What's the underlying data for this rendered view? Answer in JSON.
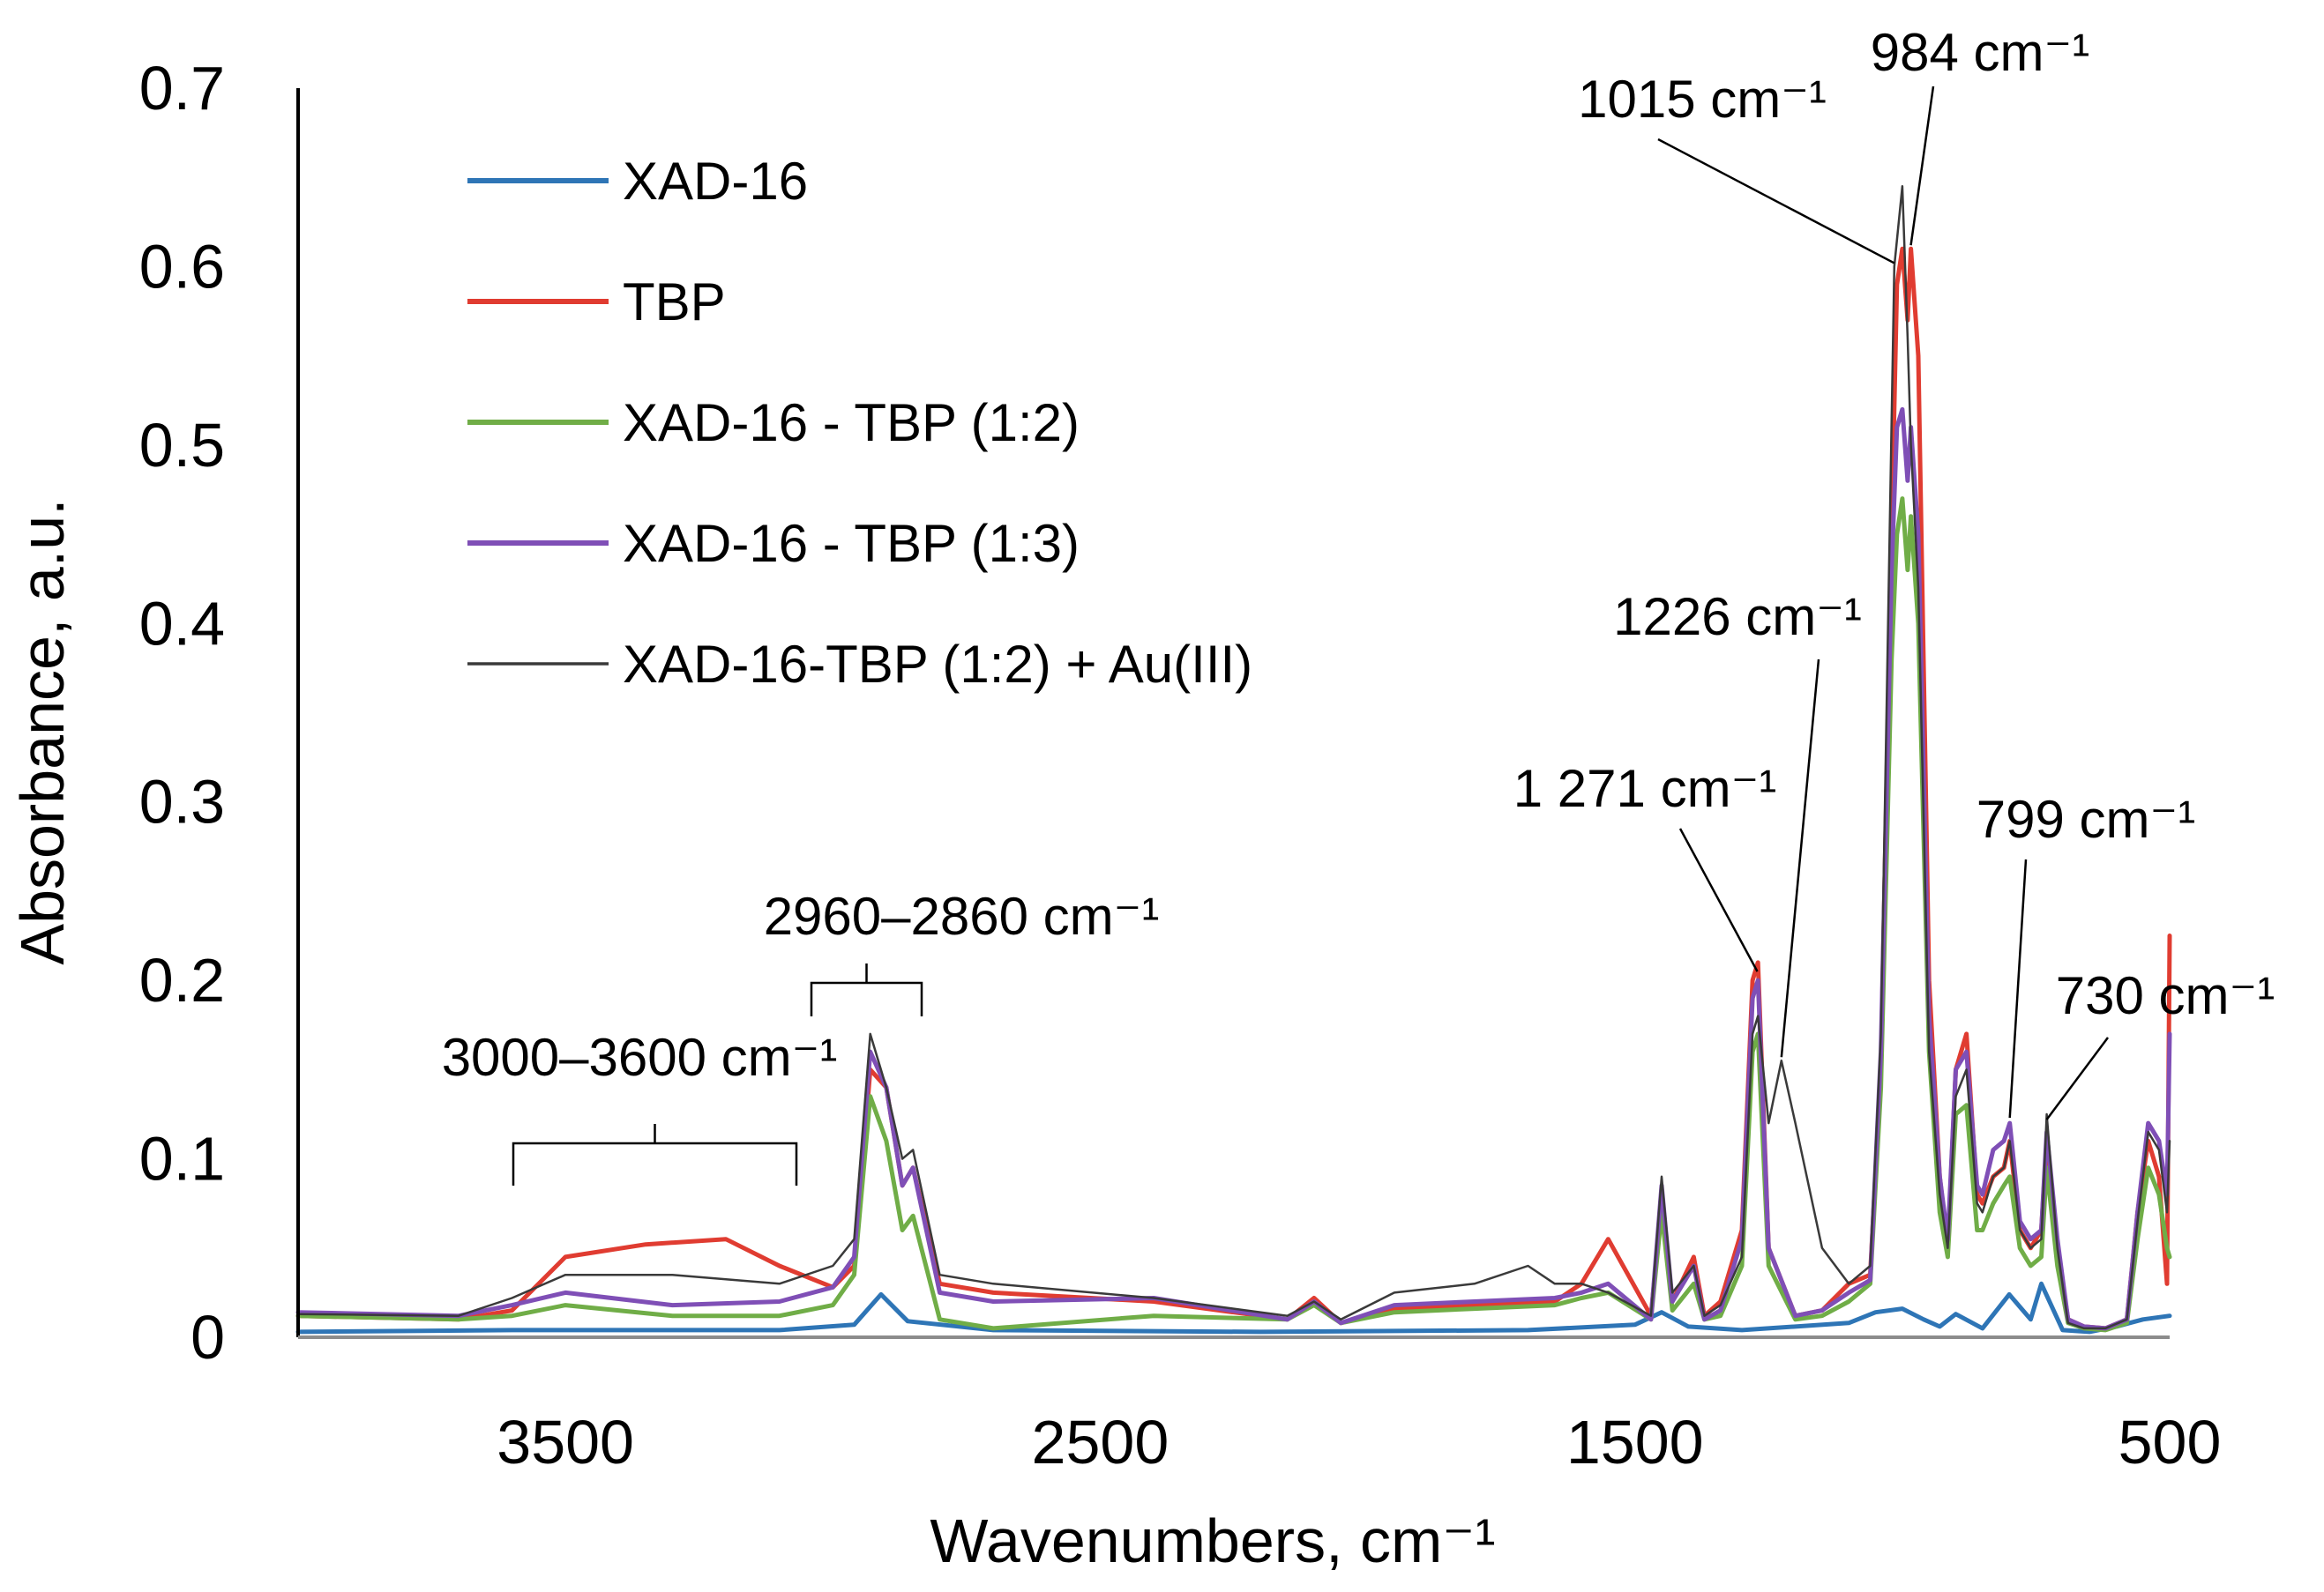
{
  "chart_data": {
    "type": "line",
    "title": "",
    "xlabel": "Wavenumbers, cm⁻¹",
    "ylabel": "Absorbance, a.u.",
    "xlim": [
      4000,
      500
    ],
    "ylim": [
      0,
      0.7
    ],
    "x_ticks": [
      3500,
      2500,
      1500,
      500
    ],
    "y_ticks": [
      0,
      0.1,
      0.2,
      0.3,
      0.4,
      0.5,
      0.6,
      0.7
    ],
    "y_tick_labels": [
      "0",
      "0.1",
      "0.2",
      "0.3",
      "0.4",
      "0.5",
      "0.6",
      "0.7"
    ],
    "legend_position": "top-left",
    "series": [
      {
        "name": "XAD-16",
        "color": "#2e75b6",
        "width": 5,
        "x": [
          4000,
          3600,
          3100,
          2960,
          2910,
          2860,
          2700,
          2200,
          1700,
          1500,
          1450,
          1400,
          1300,
          1100,
          1050,
          1000,
          960,
          930,
          900,
          850,
          800,
          760,
          740,
          700,
          650,
          600,
          550,
          500
        ],
        "y": [
          0.003,
          0.004,
          0.004,
          0.007,
          0.024,
          0.009,
          0.004,
          0.003,
          0.004,
          0.007,
          0.014,
          0.006,
          0.004,
          0.008,
          0.014,
          0.016,
          0.01,
          0.006,
          0.013,
          0.005,
          0.024,
          0.01,
          0.03,
          0.004,
          0.003,
          0.006,
          0.01,
          0.012
        ]
      },
      {
        "name": "TBP",
        "color": "#e03c31",
        "width": 5,
        "x": [
          4000,
          3700,
          3600,
          3500,
          3350,
          3200,
          3100,
          3000,
          2960,
          2930,
          2900,
          2870,
          2850,
          2800,
          2700,
          2400,
          2150,
          2100,
          2050,
          1950,
          1800,
          1650,
          1600,
          1550,
          1470,
          1450,
          1430,
          1390,
          1370,
          1340,
          1300,
          1280,
          1270,
          1250,
          1200,
          1150,
          1100,
          1060,
          1040,
          1020,
          1010,
          1000,
          990,
          984,
          970,
          950,
          930,
          915,
          900,
          880,
          860,
          850,
          830,
          810,
          799,
          780,
          760,
          740,
          730,
          710,
          690,
          660,
          620,
          580,
          560,
          540,
          520,
          505,
          500
        ],
        "y": [
          0.012,
          0.01,
          0.015,
          0.045,
          0.052,
          0.055,
          0.04,
          0.028,
          0.04,
          0.15,
          0.14,
          0.085,
          0.095,
          0.03,
          0.025,
          0.02,
          0.01,
          0.022,
          0.008,
          0.016,
          0.018,
          0.02,
          0.03,
          0.055,
          0.012,
          0.075,
          0.02,
          0.045,
          0.012,
          0.02,
          0.06,
          0.2,
          0.21,
          0.05,
          0.012,
          0.015,
          0.03,
          0.035,
          0.15,
          0.45,
          0.59,
          0.61,
          0.57,
          0.61,
          0.55,
          0.2,
          0.09,
          0.05,
          0.15,
          0.17,
          0.08,
          0.075,
          0.09,
          0.095,
          0.11,
          0.06,
          0.05,
          0.06,
          0.11,
          0.05,
          0.01,
          0.006,
          0.005,
          0.01,
          0.07,
          0.11,
          0.09,
          0.03,
          0.225
        ]
      },
      {
        "name": "XAD-16 - TBP (1:2)",
        "color": "#70ad47",
        "width": 5,
        "x": [
          4000,
          3700,
          3600,
          3500,
          3300,
          3100,
          3000,
          2960,
          2930,
          2900,
          2870,
          2850,
          2800,
          2700,
          2400,
          2150,
          2100,
          2050,
          1950,
          1800,
          1650,
          1600,
          1550,
          1470,
          1450,
          1430,
          1390,
          1370,
          1340,
          1300,
          1280,
          1270,
          1250,
          1200,
          1150,
          1100,
          1060,
          1040,
          1020,
          1010,
          1000,
          990,
          984,
          970,
          950,
          930,
          915,
          900,
          880,
          860,
          850,
          830,
          810,
          799,
          780,
          760,
          740,
          730,
          710,
          690,
          660,
          620,
          580,
          560,
          540,
          520,
          505,
          500
        ],
        "y": [
          0.012,
          0.01,
          0.012,
          0.018,
          0.012,
          0.012,
          0.018,
          0.035,
          0.135,
          0.11,
          0.06,
          0.068,
          0.01,
          0.005,
          0.012,
          0.01,
          0.018,
          0.008,
          0.014,
          0.016,
          0.018,
          0.022,
          0.025,
          0.01,
          0.07,
          0.015,
          0.03,
          0.01,
          0.012,
          0.04,
          0.16,
          0.17,
          0.04,
          0.01,
          0.012,
          0.02,
          0.03,
          0.14,
          0.38,
          0.45,
          0.47,
          0.43,
          0.46,
          0.4,
          0.16,
          0.07,
          0.045,
          0.125,
          0.13,
          0.06,
          0.06,
          0.075,
          0.085,
          0.09,
          0.05,
          0.04,
          0.045,
          0.095,
          0.04,
          0.008,
          0.005,
          0.004,
          0.008,
          0.055,
          0.095,
          0.08,
          0.05,
          0.045
        ]
      },
      {
        "name": "XAD-16 - TBP (1:3)",
        "color": "#7f4fb6",
        "width": 5,
        "x": [
          4000,
          3700,
          3600,
          3500,
          3300,
          3100,
          3000,
          2960,
          2930,
          2900,
          2870,
          2850,
          2800,
          2700,
          2400,
          2150,
          2100,
          2050,
          1950,
          1800,
          1650,
          1600,
          1550,
          1470,
          1450,
          1430,
          1390,
          1370,
          1340,
          1300,
          1280,
          1270,
          1250,
          1200,
          1150,
          1100,
          1060,
          1040,
          1020,
          1010,
          1000,
          990,
          984,
          970,
          950,
          930,
          915,
          900,
          880,
          860,
          850,
          830,
          810,
          799,
          780,
          760,
          740,
          730,
          710,
          690,
          660,
          620,
          580,
          560,
          540,
          520,
          505,
          500
        ],
        "y": [
          0.014,
          0.012,
          0.018,
          0.025,
          0.018,
          0.02,
          0.028,
          0.045,
          0.16,
          0.14,
          0.085,
          0.095,
          0.025,
          0.02,
          0.022,
          0.01,
          0.02,
          0.008,
          0.018,
          0.02,
          0.022,
          0.025,
          0.03,
          0.01,
          0.085,
          0.02,
          0.04,
          0.01,
          0.015,
          0.055,
          0.19,
          0.2,
          0.05,
          0.012,
          0.015,
          0.025,
          0.032,
          0.16,
          0.43,
          0.51,
          0.52,
          0.48,
          0.51,
          0.45,
          0.18,
          0.09,
          0.055,
          0.15,
          0.16,
          0.085,
          0.08,
          0.105,
          0.11,
          0.12,
          0.065,
          0.055,
          0.06,
          0.115,
          0.055,
          0.01,
          0.006,
          0.005,
          0.01,
          0.07,
          0.12,
          0.11,
          0.08,
          0.17
        ]
      },
      {
        "name": "XAD-16-TBP (1:2) + Au(III)",
        "color": "#3a3a3a",
        "width": 2.5,
        "x": [
          4000,
          3700,
          3600,
          3500,
          3300,
          3100,
          3000,
          2960,
          2930,
          2900,
          2870,
          2850,
          2800,
          2700,
          2400,
          2150,
          2100,
          2050,
          1950,
          1800,
          1700,
          1650,
          1600,
          1550,
          1470,
          1450,
          1430,
          1390,
          1370,
          1340,
          1300,
          1280,
          1270,
          1250,
          1226,
          1200,
          1150,
          1100,
          1060,
          1040,
          1015,
          1000,
          990,
          984,
          970,
          950,
          930,
          915,
          900,
          880,
          860,
          850,
          830,
          810,
          799,
          780,
          760,
          740,
          730,
          710,
          690,
          660,
          620,
          580,
          560,
          540,
          520,
          505,
          500
        ],
        "y": [
          0.013,
          0.012,
          0.022,
          0.035,
          0.035,
          0.03,
          0.04,
          0.055,
          0.17,
          0.14,
          0.1,
          0.105,
          0.035,
          0.03,
          0.022,
          0.012,
          0.02,
          0.01,
          0.025,
          0.03,
          0.04,
          0.03,
          0.03,
          0.025,
          0.012,
          0.09,
          0.025,
          0.04,
          0.012,
          0.018,
          0.045,
          0.17,
          0.18,
          0.12,
          0.155,
          0.12,
          0.05,
          0.03,
          0.04,
          0.17,
          0.6,
          0.645,
          0.56,
          0.5,
          0.42,
          0.16,
          0.08,
          0.05,
          0.135,
          0.15,
          0.075,
          0.07,
          0.09,
          0.095,
          0.11,
          0.06,
          0.05,
          0.055,
          0.125,
          0.05,
          0.008,
          0.005,
          0.005,
          0.01,
          0.065,
          0.115,
          0.105,
          0.07,
          0.11
        ]
      }
    ],
    "annotations": [
      {
        "text": "1015 cm⁻¹",
        "x": 1015,
        "y": 0.6
      },
      {
        "text": "984 cm⁻¹",
        "x": 984,
        "y": 0.61
      },
      {
        "text": "1226 cm⁻¹",
        "x": 1226,
        "y": 0.155
      },
      {
        "text": "1 271 cm⁻¹",
        "x": 1271,
        "y": 0.2
      },
      {
        "text": "799 cm⁻¹",
        "x": 799,
        "y": 0.12
      },
      {
        "text": "730 cm⁻¹",
        "x": 730,
        "y": 0.12
      },
      {
        "text": "2960–2860 cm⁻¹",
        "x_range": [
          2960,
          2860
        ]
      },
      {
        "text": "3000–3600 cm⁻¹",
        "x_range": [
          3600,
          3000
        ]
      }
    ]
  }
}
